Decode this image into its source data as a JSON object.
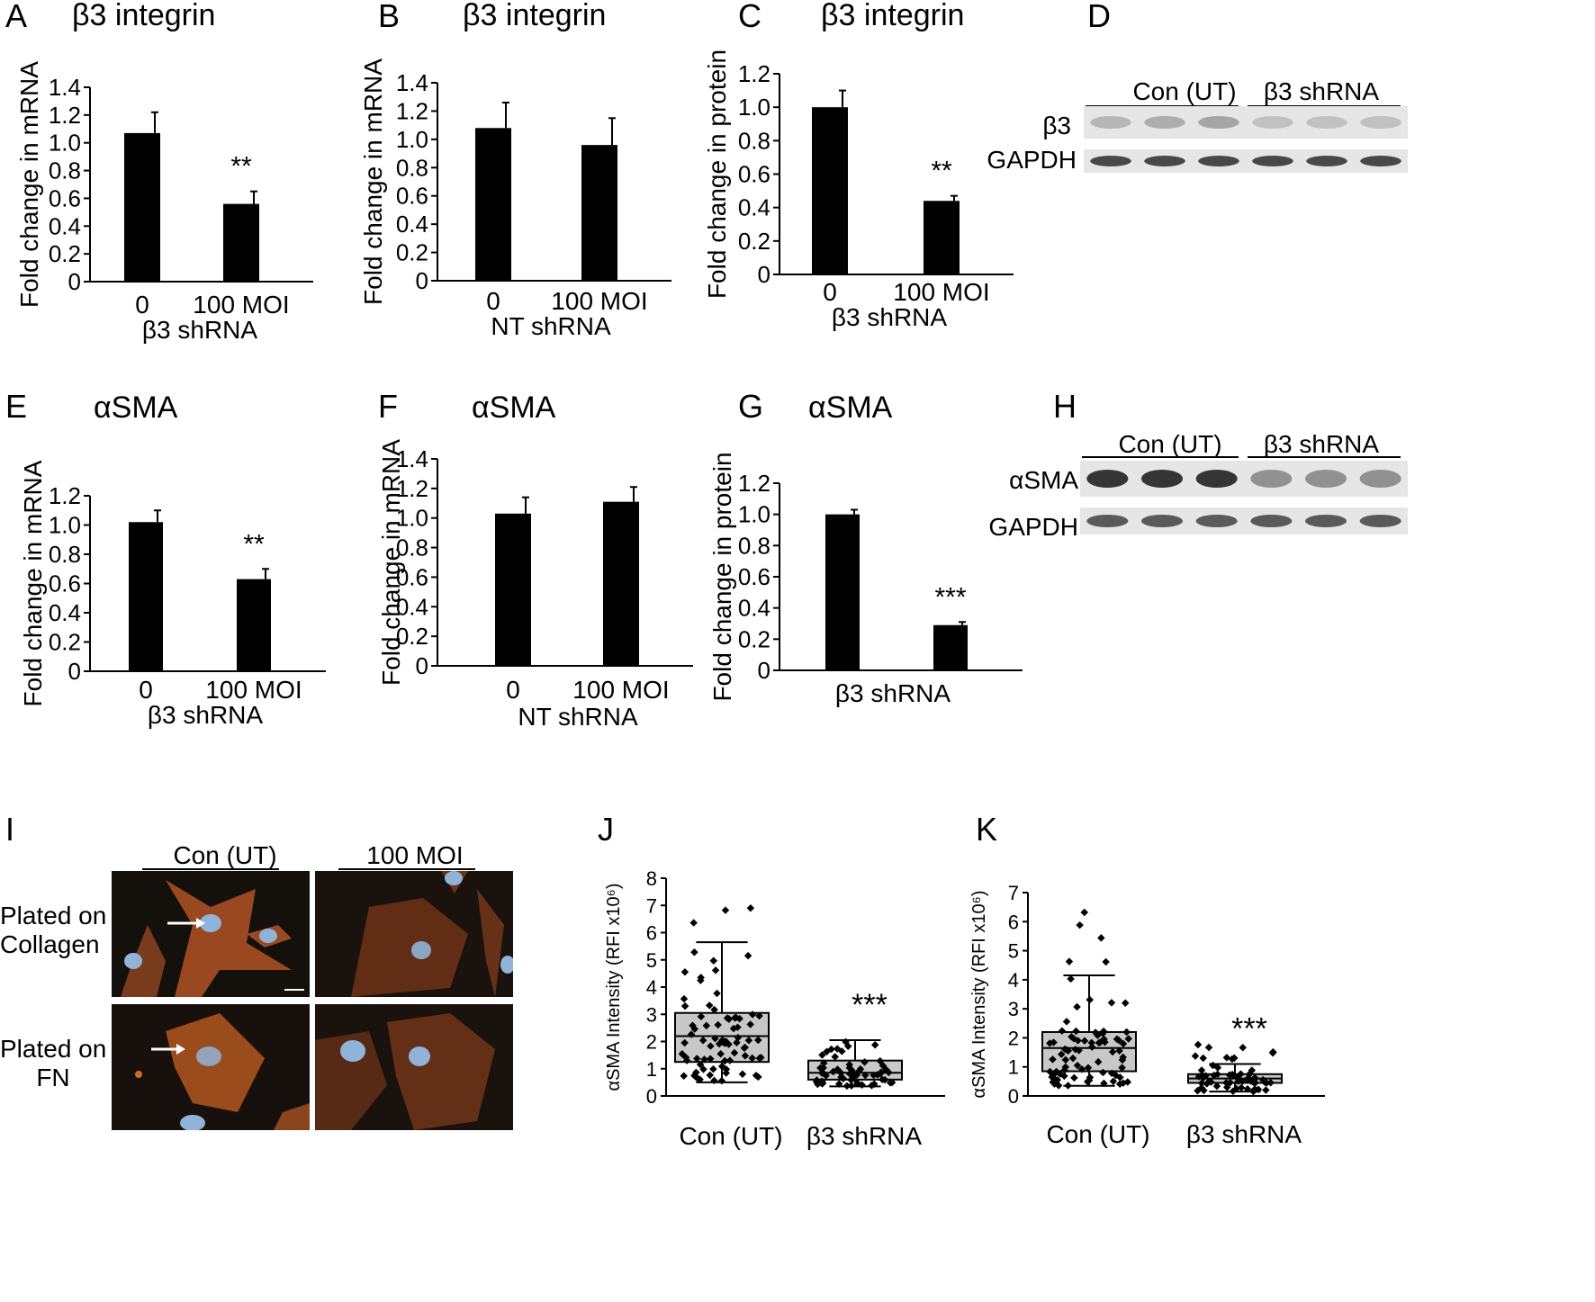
{
  "panel_labels": {
    "A": "A",
    "B": "B",
    "C": "C",
    "D": "D",
    "E": "E",
    "F": "F",
    "G": "G",
    "H": "H",
    "I": "I",
    "J": "J",
    "K": "K"
  },
  "titles": {
    "A": "β3 integrin",
    "B": "β3 integrin",
    "C": "β3 integrin",
    "E": "αSMA",
    "F": "αSMA",
    "G": "αSMA"
  },
  "colors": {
    "bar": "#000000",
    "box_fill": "#c8c8c8",
    "blot_bg": "#e6e6e6",
    "band": "#2b2b2b",
    "cell": "#c0602a",
    "nucleus": "#8fb4d8",
    "micro_bg": "#1a1410"
  },
  "chart_data": [
    {
      "id": "A",
      "type": "bar",
      "title": "β3 integrin",
      "categories": [
        "0",
        "100 MOI"
      ],
      "group_label": "β3 shRNA",
      "ylabel": "Fold change in mRNA",
      "ylim": [
        0,
        1.4
      ],
      "yticks": [
        "0",
        "0.2",
        "0.4",
        "0.6",
        "0.8",
        "1.0",
        "1.2",
        "1.4"
      ],
      "values": [
        1.07,
        0.56
      ],
      "errors": [
        0.15,
        0.09
      ],
      "annotations": [
        "",
        "**"
      ]
    },
    {
      "id": "B",
      "type": "bar",
      "title": "β3 integrin",
      "categories": [
        "0",
        "100 MOI"
      ],
      "group_label": "NT shRNA",
      "ylabel": "Fold change in mRNA",
      "ylim": [
        0,
        1.4
      ],
      "yticks": [
        "0",
        "0.2",
        "0.4",
        "0.6",
        "0.8",
        "1.0",
        "1.2",
        "1.4"
      ],
      "values": [
        1.08,
        0.96
      ],
      "errors": [
        0.18,
        0.19
      ],
      "annotations": [
        "",
        ""
      ]
    },
    {
      "id": "C",
      "type": "bar",
      "title": "β3 integrin",
      "categories": [
        "0",
        "100 MOI"
      ],
      "group_label": "β3 shRNA",
      "ylabel": "Fold change in protein",
      "ylim": [
        0,
        1.2
      ],
      "yticks": [
        "0",
        "0.2",
        "0.4",
        "0.6",
        "0.8",
        "1.0",
        "1.2"
      ],
      "values": [
        1.0,
        0.44
      ],
      "errors": [
        0.1,
        0.03
      ],
      "annotations": [
        "",
        "**"
      ]
    },
    {
      "id": "E",
      "type": "bar",
      "title": "αSMA",
      "categories": [
        "0",
        "100 MOI"
      ],
      "group_label": "β3 shRNA",
      "ylabel": "Fold change in mRNA",
      "ylim": [
        0,
        1.2
      ],
      "yticks": [
        "0",
        "0.2",
        "0.4",
        "0.6",
        "0.8",
        "1.0",
        "1.2"
      ],
      "values": [
        1.02,
        0.63
      ],
      "errors": [
        0.08,
        0.07
      ],
      "annotations": [
        "",
        "**"
      ]
    },
    {
      "id": "F",
      "type": "bar",
      "title": "αSMA",
      "categories": [
        "0",
        "100 MOI"
      ],
      "group_label": "NT shRNA",
      "ylabel": "Fold change in mRNA",
      "ylim": [
        0,
        1.4
      ],
      "yticks": [
        "0",
        "0.2",
        "0.4",
        "0.6",
        "0.8",
        "1.0",
        "1.2",
        "1.4"
      ],
      "values": [
        1.03,
        1.11
      ],
      "errors": [
        0.11,
        0.1
      ],
      "annotations": [
        "",
        ""
      ]
    },
    {
      "id": "G",
      "type": "bar",
      "title": "αSMA",
      "categories": [
        "",
        ""
      ],
      "group_label": "β3 shRNA",
      "ylabel": "Fold change in protein",
      "ylim": [
        0,
        1.2
      ],
      "yticks": [
        "0",
        "0.2",
        "0.4",
        "0.6",
        "0.8",
        "1.0",
        "1.2"
      ],
      "values": [
        1.0,
        0.29
      ],
      "errors": [
        0.03,
        0.02
      ],
      "annotations": [
        "",
        "***"
      ]
    },
    {
      "id": "J",
      "type": "box",
      "categories": [
        "Con (UT)",
        "β3 shRNA"
      ],
      "ylabel": "αSMA Intensity (RFI x10⁶)",
      "ylim": [
        0,
        8
      ],
      "yticks": [
        "0",
        "1",
        "2",
        "3",
        "4",
        "5",
        "6",
        "7",
        "8"
      ],
      "boxes": [
        {
          "q1": 1.25,
          "median": 2.2,
          "q3": 3.05,
          "whisker_low": 0.5,
          "whisker_high": 5.65,
          "max": 7.4
        },
        {
          "q1": 0.6,
          "median": 0.85,
          "q3": 1.3,
          "whisker_low": 0.35,
          "whisker_high": 2.05,
          "max": 2.05
        }
      ],
      "annotations": [
        "",
        "***"
      ]
    },
    {
      "id": "K",
      "type": "box",
      "categories": [
        "Con (UT)",
        "β3 shRNA"
      ],
      "ylabel": "αSMA Intensity (RFI x10⁶)",
      "ylim": [
        0,
        7
      ],
      "yticks": [
        "0",
        "1",
        "2",
        "3",
        "4",
        "5",
        "6",
        "7"
      ],
      "boxes": [
        {
          "q1": 0.85,
          "median": 1.65,
          "q3": 2.2,
          "whisker_low": 0.35,
          "whisker_high": 4.15,
          "max": 6.7
        },
        {
          "q1": 0.45,
          "median": 0.6,
          "q3": 0.75,
          "whisker_low": 0.15,
          "whisker_high": 1.1,
          "max": 1.85
        }
      ],
      "annotations": [
        "",
        "***"
      ]
    }
  ],
  "blots": {
    "D": {
      "groups": [
        "Con (UT)",
        "β3 shRNA"
      ],
      "rows": [
        "β3",
        "GAPDH"
      ]
    },
    "H": {
      "groups": [
        "Con (UT)",
        "β3 shRNA"
      ],
      "rows": [
        "αSMA",
        "GAPDH"
      ]
    }
  },
  "microscopy": {
    "columns": [
      "Con (UT)",
      "100 MOI"
    ],
    "rows": [
      {
        "line1": "Plated on",
        "line2": "Collagen"
      },
      {
        "line1": "Plated on",
        "line2": "FN"
      }
    ]
  }
}
